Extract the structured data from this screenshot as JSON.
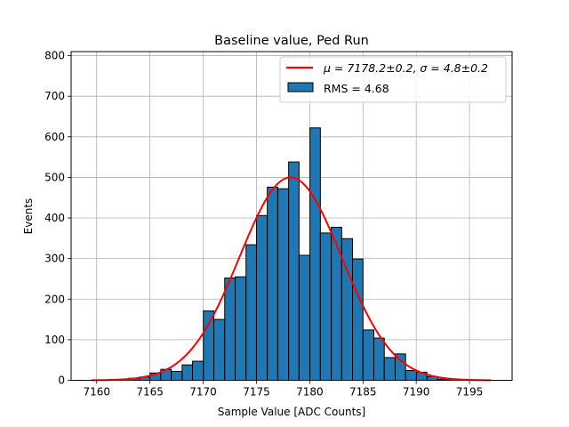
{
  "chart_data": {
    "type": "bar",
    "title": "Baseline value, Ped Run",
    "xlabel": "Sample Value [ADC Counts]",
    "ylabel": "Events",
    "xlim": [
      7157.6,
      7199.0
    ],
    "ylim": [
      0,
      810
    ],
    "xticks": [
      7160,
      7165,
      7170,
      7175,
      7180,
      7185,
      7190,
      7195
    ],
    "yticks": [
      0,
      100,
      200,
      300,
      400,
      500,
      600,
      700,
      800
    ],
    "grid": true,
    "legend_position": "top-right",
    "histogram": {
      "name": "RMS = 4.68",
      "color": "#1f77b4",
      "edgecolor": "#000000",
      "bin_left_edges": [
        7161.98,
        7163.0,
        7164.02,
        7165.0,
        7166.02,
        7167.0,
        7168.02,
        7169.0,
        7170.02,
        7171.0,
        7172.02,
        7173.0,
        7174.02,
        7175.0,
        7176.02,
        7177.0,
        7178.02,
        7179.0,
        7180.02,
        7181.0,
        7182.02,
        7183.0,
        7184.02,
        7185.0,
        7186.02,
        7187.0,
        7188.02,
        7189.0,
        7190.02,
        7191.0,
        7192.02,
        7193.0
      ],
      "bin_right_edges": [
        7163.0,
        7164.02,
        7165.0,
        7166.02,
        7167.0,
        7168.02,
        7169.0,
        7170.02,
        7171.0,
        7172.02,
        7173.0,
        7174.02,
        7175.0,
        7176.02,
        7177.0,
        7178.02,
        7179.0,
        7180.02,
        7181.0,
        7182.02,
        7183.0,
        7184.02,
        7185.0,
        7186.02,
        7187.0,
        7188.02,
        7189.0,
        7190.02,
        7191.0,
        7192.02,
        7193.0,
        7194.0
      ],
      "values": [
        2,
        5,
        8,
        18,
        27,
        22,
        38,
        47,
        171,
        150,
        252,
        255,
        334,
        406,
        476,
        472,
        538,
        308,
        622,
        363,
        377,
        349,
        299,
        124,
        104,
        56,
        65,
        24,
        20,
        9,
        3,
        1
      ]
    },
    "fit": {
      "name": "$\\mu = 7178.2 \\pm 0.2$, $\\sigma = 4.8 \\pm 0.2$",
      "legend_label": "μ = 7178.2±0.2, σ = 4.8±0.2",
      "color": "#ff0000",
      "type": "gaussian",
      "mu": 7178.2,
      "sigma": 4.8,
      "amplitude": 500,
      "x_range": [
        7159.5,
        7197.0
      ]
    }
  }
}
